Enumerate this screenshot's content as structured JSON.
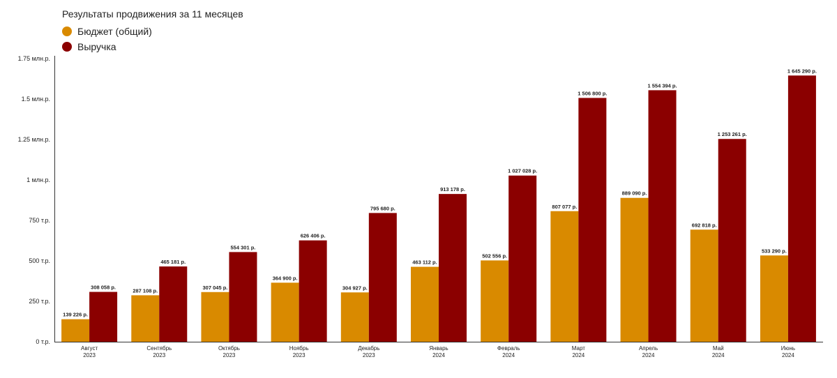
{
  "colors": {
    "budget": "#d98a00",
    "revenue": "#8b0000",
    "axis": "#333333",
    "text": "#222222"
  },
  "chart_data": {
    "type": "bar",
    "title": "Результаты продвижения за 11 месяцев",
    "categories": [
      [
        "Август",
        "2023"
      ],
      [
        "Сентябрь",
        "2023"
      ],
      [
        "Октябрь",
        "2023"
      ],
      [
        "Ноябрь",
        "2023"
      ],
      [
        "Декабрь",
        "2023"
      ],
      [
        "Январь",
        "2024"
      ],
      [
        "Февраль",
        "2024"
      ],
      [
        "Март",
        "2024"
      ],
      [
        "Апрель",
        "2024"
      ],
      [
        "Май",
        "2024"
      ],
      [
        "Июнь",
        "2024"
      ]
    ],
    "series": [
      {
        "name": "Бюджет (общий)",
        "color": "#d98a00",
        "values": [
          139226,
          287108,
          307045,
          364900,
          304927,
          463112,
          502556,
          807077,
          889090,
          692818,
          533290
        ],
        "labels": [
          "139 226 р.",
          "287 108 р.",
          "307 045 р.",
          "364 900 р.",
          "304 927 р.",
          "463 112 р.",
          "502 556 р.",
          "807 077 р.",
          "889 090 р.",
          "692 818 р.",
          "533 290 р."
        ]
      },
      {
        "name": "Выручка",
        "color": "#8b0000",
        "values": [
          308058,
          465181,
          554301,
          626406,
          795680,
          913178,
          1027028,
          1506800,
          1554394,
          1253261,
          1645290
        ],
        "labels": [
          "308 058 р.",
          "465 181 р.",
          "554 301 р.",
          "626 406 р.",
          "795 680 р.",
          "913 178 р.",
          "1 027 028 р.",
          "1 506 800 р.",
          "1 554 394 р.",
          "1 253 261 р.",
          "1 645 290 р."
        ]
      }
    ],
    "ylim": [
      0,
      1750000
    ],
    "yticks": [
      0,
      250000,
      500000,
      750000,
      1000000,
      1250000,
      1500000,
      1750000
    ],
    "ytick_labels": [
      "0 т.р.",
      "250 т.р.",
      "500 т.р.",
      "750 т.р.",
      "1 млн.р.",
      "1.25 млн.р.",
      "1.5 млн.р.",
      "1.75 млн.р."
    ],
    "grid": false,
    "legend": "top-left"
  }
}
